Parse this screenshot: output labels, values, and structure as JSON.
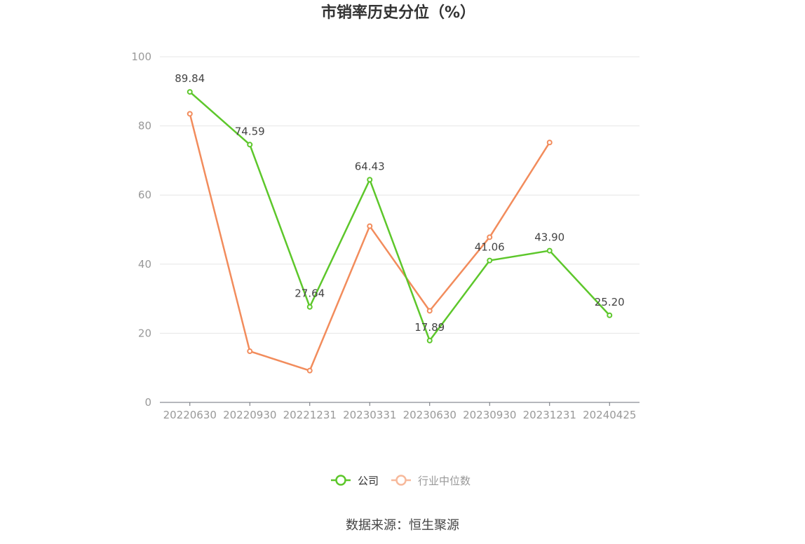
{
  "chart_data": {
    "type": "line",
    "title": "市销率历史分位（%）",
    "xlabel": "",
    "ylabel": "",
    "categories": [
      "20220630",
      "20220930",
      "20221231",
      "20230331",
      "20230630",
      "20230930",
      "20231231",
      "20240425"
    ],
    "ylim": [
      0,
      100
    ],
    "yticks": [
      "0",
      "20",
      "40",
      "60",
      "80",
      "100"
    ],
    "grid": true,
    "legend_position": "bottom",
    "series": [
      {
        "name": "公司",
        "color": "#5dc72b",
        "values": [
          89.84,
          74.59,
          27.64,
          64.43,
          17.89,
          41.06,
          43.9,
          25.2
        ],
        "labels": [
          "89.84",
          "74.59",
          "27.64",
          "64.43",
          "17.89",
          "41.06",
          "43.90",
          "25.20"
        ]
      },
      {
        "name": "行业中位数",
        "color": "#f28c5c",
        "values": [
          83.5,
          14.8,
          9.2,
          51.0,
          26.5,
          47.8,
          75.2,
          null
        ]
      }
    ]
  },
  "source_text": "数据来源：恒生聚源"
}
